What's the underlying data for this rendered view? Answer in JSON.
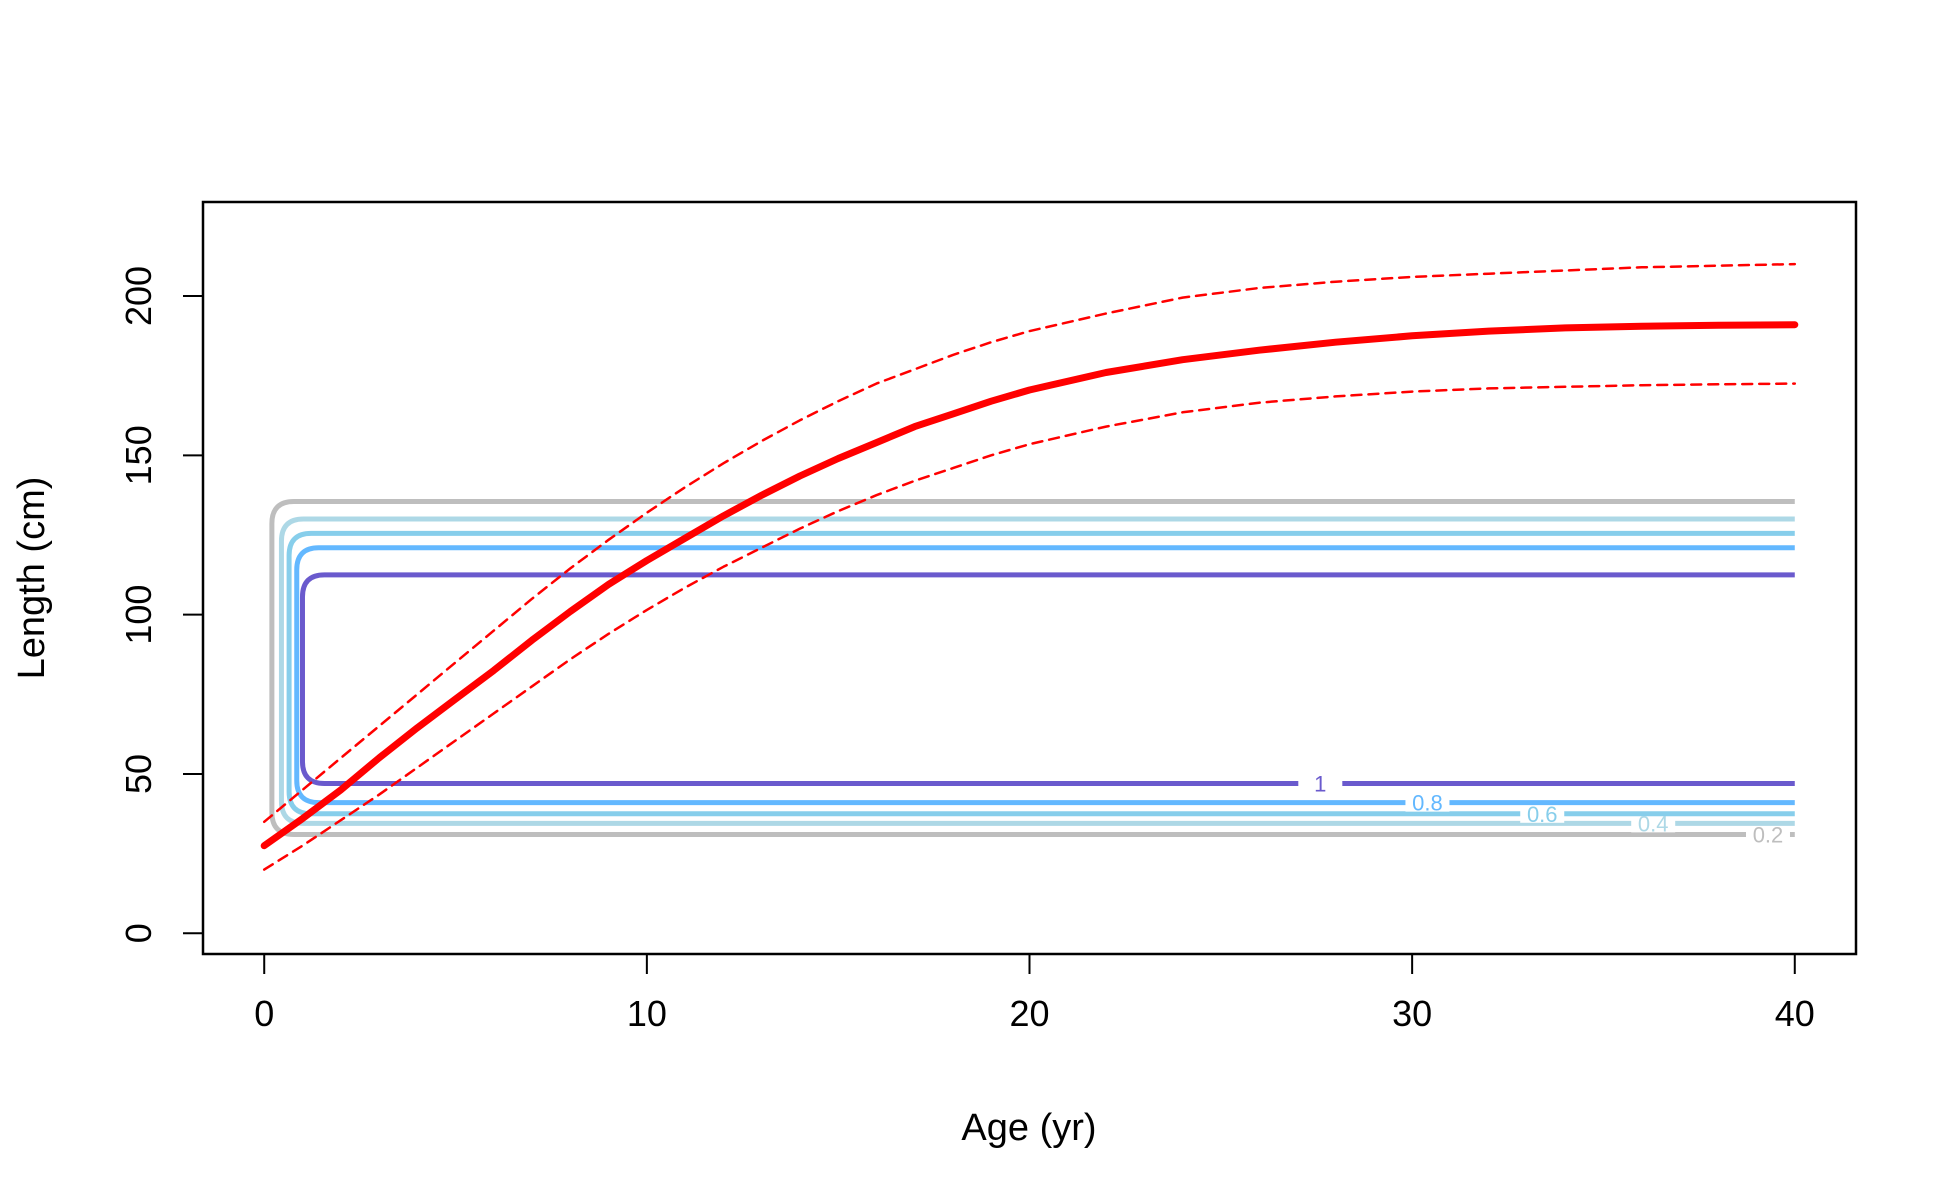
{
  "chart_data": {
    "type": "line",
    "title": "",
    "xlabel": "Age (yr)",
    "ylabel": "Length (cm)",
    "xlim": [
      -1.6,
      41.6
    ],
    "ylim": [
      -6.5,
      229.5
    ],
    "x_ticks": [
      0,
      10,
      20,
      30,
      40
    ],
    "y_ticks": [
      0,
      50,
      100,
      150,
      200
    ],
    "grid": false,
    "legend": "none",
    "series": [
      {
        "style": "solid",
        "color": "#ff0000",
        "x": [
          0,
          1,
          2,
          3,
          4,
          5,
          6,
          7,
          8,
          9,
          10,
          11,
          12,
          13,
          14,
          15,
          16,
          17,
          18,
          19,
          20,
          22,
          24,
          26,
          28,
          30,
          32,
          34,
          36,
          38,
          40
        ],
        "y": [
          27.5,
          36,
          45,
          55,
          64.5,
          73.5,
          82.5,
          92,
          101,
          109.5,
          117,
          124,
          131,
          137.5,
          143.5,
          149,
          154,
          159,
          163,
          167,
          170.5,
          176,
          180,
          183,
          185.5,
          187.5,
          189,
          190,
          190.5,
          190.8,
          191
        ]
      },
      {
        "style": "dashed",
        "color": "#ff0000",
        "x": [
          0,
          1,
          2,
          3,
          4,
          5,
          6,
          7,
          8,
          9,
          10,
          11,
          12,
          13,
          14,
          15,
          16,
          17,
          18,
          19,
          20,
          22,
          24,
          26,
          28,
          30,
          32,
          34,
          36,
          38,
          40
        ],
        "y": [
          35,
          45,
          55,
          65,
          75,
          85,
          95,
          105,
          114.5,
          123.5,
          132,
          140,
          147.5,
          154.5,
          161,
          167,
          172.5,
          177,
          181.5,
          185.5,
          189,
          194.5,
          199.5,
          202.5,
          204.5,
          206,
          207,
          208,
          209,
          209.5,
          210
        ]
      },
      {
        "style": "dashed",
        "color": "#ff0000",
        "x": [
          0,
          1,
          2,
          3,
          4,
          5,
          6,
          7,
          8,
          9,
          10,
          11,
          12,
          13,
          14,
          15,
          16,
          17,
          18,
          19,
          20,
          22,
          24,
          26,
          28,
          30,
          32,
          34,
          36,
          38,
          40
        ],
        "y": [
          20,
          27.5,
          35.5,
          43.5,
          52,
          60.5,
          69,
          77.5,
          86,
          94,
          101.5,
          108.5,
          115,
          121,
          127,
          132.5,
          137.5,
          142,
          146,
          150,
          153.5,
          159,
          163.5,
          166.5,
          168.5,
          170,
          171,
          171.5,
          172,
          172.3,
          172.5
        ]
      }
    ],
    "contours": [
      {
        "level": "0.2",
        "color": "#bebebe",
        "x_left": 0.2,
        "x_right": 40,
        "y_bottom": 31,
        "y_top": 135.5,
        "label_x": 39.3
      },
      {
        "level": "0.4",
        "color": "#add8e6",
        "x_left": 0.45,
        "x_right": 40,
        "y_bottom": 34.5,
        "y_top": 130,
        "label_x": 36.3
      },
      {
        "level": "0.6",
        "color": "#87ceeb",
        "x_left": 0.65,
        "x_right": 40,
        "y_bottom": 37.5,
        "y_top": 125.5,
        "label_x": 33.4
      },
      {
        "level": "0.8",
        "color": "#63b8ff",
        "x_left": 0.85,
        "x_right": 40,
        "y_bottom": 41,
        "y_top": 121,
        "label_x": 30.4
      },
      {
        "level": "1",
        "color": "#6a5acd",
        "x_left": 1.0,
        "x_right": 40,
        "y_bottom": 47,
        "y_top": 112.5,
        "label_x": 27.6
      }
    ]
  }
}
